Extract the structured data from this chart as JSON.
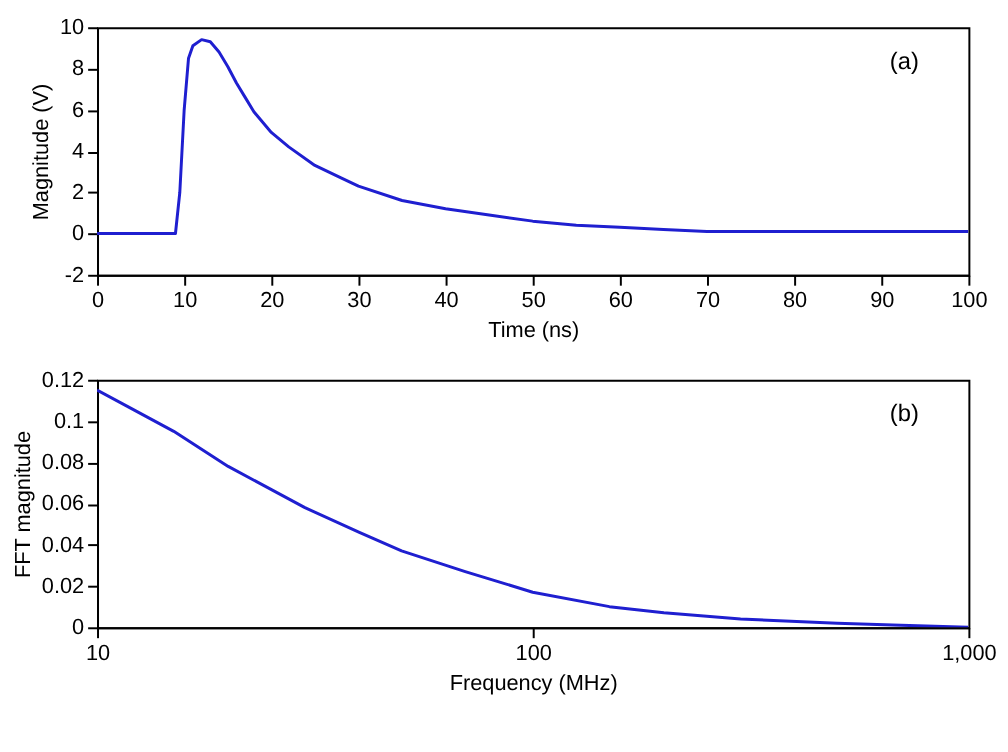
{
  "chart_data": [
    {
      "type": "line",
      "xlabel": "Time (ns)",
      "ylabel": "Magnitude (V)",
      "annotations": [
        "(a)"
      ],
      "grid": false,
      "xlim": [
        0,
        100
      ],
      "xticks": [
        0,
        10,
        20,
        30,
        40,
        50,
        60,
        70,
        80,
        90,
        100
      ],
      "ylim": [
        -2,
        10
      ],
      "yticks": [
        -2,
        0,
        2,
        4,
        6,
        8,
        10
      ],
      "series": [
        {
          "color": "#1f1fd0",
          "x": [
            0,
            9,
            9.5,
            10,
            10.5,
            11,
            12,
            13,
            14,
            15,
            16,
            17,
            18,
            20,
            22,
            25,
            28,
            30,
            35,
            40,
            45,
            50,
            55,
            60,
            65,
            70,
            80,
            90,
            100
          ],
          "values": [
            0,
            0,
            2,
            6,
            8.5,
            9.1,
            9.4,
            9.3,
            8.8,
            8.1,
            7.3,
            6.6,
            5.9,
            4.9,
            4.2,
            3.3,
            2.7,
            2.3,
            1.6,
            1.2,
            0.9,
            0.6,
            0.4,
            0.3,
            0.2,
            0.1,
            0.1,
            0.1,
            0.1
          ]
        }
      ]
    },
    {
      "type": "line",
      "xlabel": "Frequency (MHz)",
      "ylabel": "FFT magnitude",
      "annotations": [
        "(b)"
      ],
      "grid": false,
      "log": "x",
      "xlim": [
        10,
        1000
      ],
      "xticks": [
        10,
        100,
        {
          "value": 1000,
          "label": "1,000"
        }
      ],
      "ylim": [
        0,
        0.12
      ],
      "yticks": [
        0,
        0.02,
        0.04,
        0.06,
        0.08,
        0.1,
        0.12
      ],
      "series": [
        {
          "color": "#1f1fd0",
          "x": [
            10,
            12,
            15,
            20,
            30,
            40,
            50,
            70,
            100,
            150,
            200,
            300,
            500,
            700,
            1000
          ],
          "values": [
            0.115,
            0.106,
            0.095,
            0.078,
            0.058,
            0.046,
            0.037,
            0.027,
            0.017,
            0.01,
            0.007,
            0.004,
            0.002,
            0.001,
            0
          ]
        }
      ]
    }
  ]
}
